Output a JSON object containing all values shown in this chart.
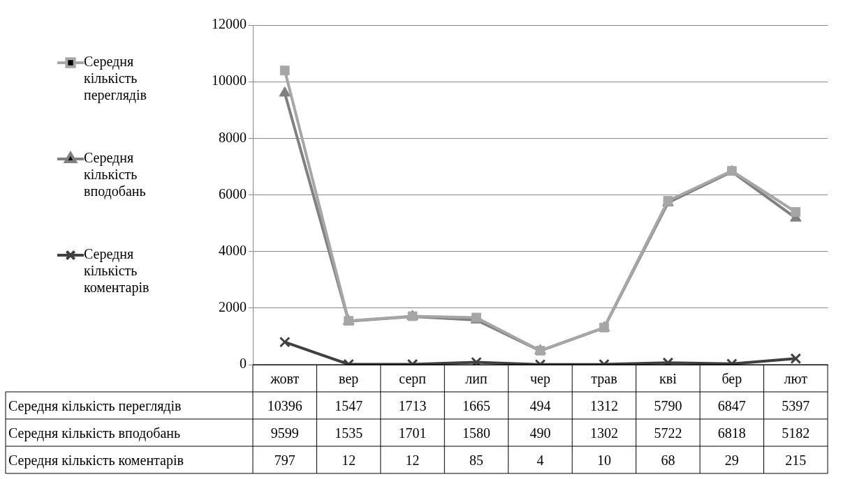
{
  "chart_data": {
    "type": "line",
    "categories": [
      "жовт",
      "вер",
      "серп",
      "лип",
      "чер",
      "трав",
      "кві",
      "бер",
      "лют"
    ],
    "series": [
      {
        "name": "Середня кількість переглядів",
        "color": "#a6a6a6",
        "marker": "square",
        "values": [
          10396,
          1547,
          1713,
          1665,
          494,
          1312,
          5790,
          6847,
          5397
        ]
      },
      {
        "name": "Середня кількість вподобань",
        "color": "#808080",
        "marker": "triangle",
        "values": [
          9599,
          1535,
          1701,
          1580,
          490,
          1302,
          5722,
          6818,
          5182
        ]
      },
      {
        "name": "Середня кількість коментарів",
        "color": "#404040",
        "marker": "cross",
        "values": [
          797,
          12,
          12,
          85,
          4,
          10,
          68,
          29,
          215
        ]
      }
    ],
    "ylim": [
      0,
      12000
    ],
    "yticks": [
      0,
      2000,
      4000,
      6000,
      8000,
      10000,
      12000
    ],
    "grid": "y",
    "legend": "left",
    "data_labels": true
  }
}
